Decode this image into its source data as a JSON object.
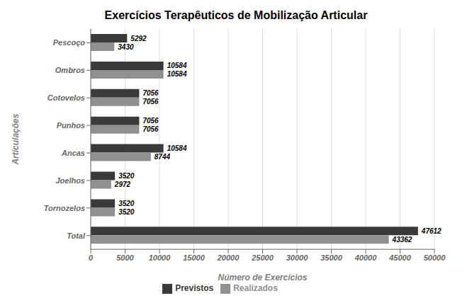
{
  "chart_data": {
    "type": "bar",
    "orientation": "horizontal",
    "title": "Exercícios Terapêuticos de Mobilização Articular",
    "xlabel": "Número de Exercícios",
    "ylabel": "Articulações",
    "categories": [
      "Pescoço",
      "Ombros",
      "Cotovelos",
      "Punhos",
      "Ancas",
      "Joelhos",
      "Tornozelos",
      "Total"
    ],
    "series": [
      {
        "name": "Previstos",
        "color": "#3a3a3a",
        "values": [
          5292,
          10584,
          7056,
          7056,
          10584,
          3520,
          3520,
          47612
        ]
      },
      {
        "name": "Realizados",
        "color": "#909090",
        "values": [
          3430,
          10584,
          7056,
          7056,
          8744,
          2972,
          3520,
          43362
        ]
      }
    ],
    "xlim": [
      0,
      50000
    ],
    "xticks": [
      0,
      5000,
      10000,
      15000,
      20000,
      25000,
      30000,
      35000,
      40000,
      45000,
      50000
    ],
    "grid": true,
    "legend": "bottom",
    "data_labels": true
  }
}
